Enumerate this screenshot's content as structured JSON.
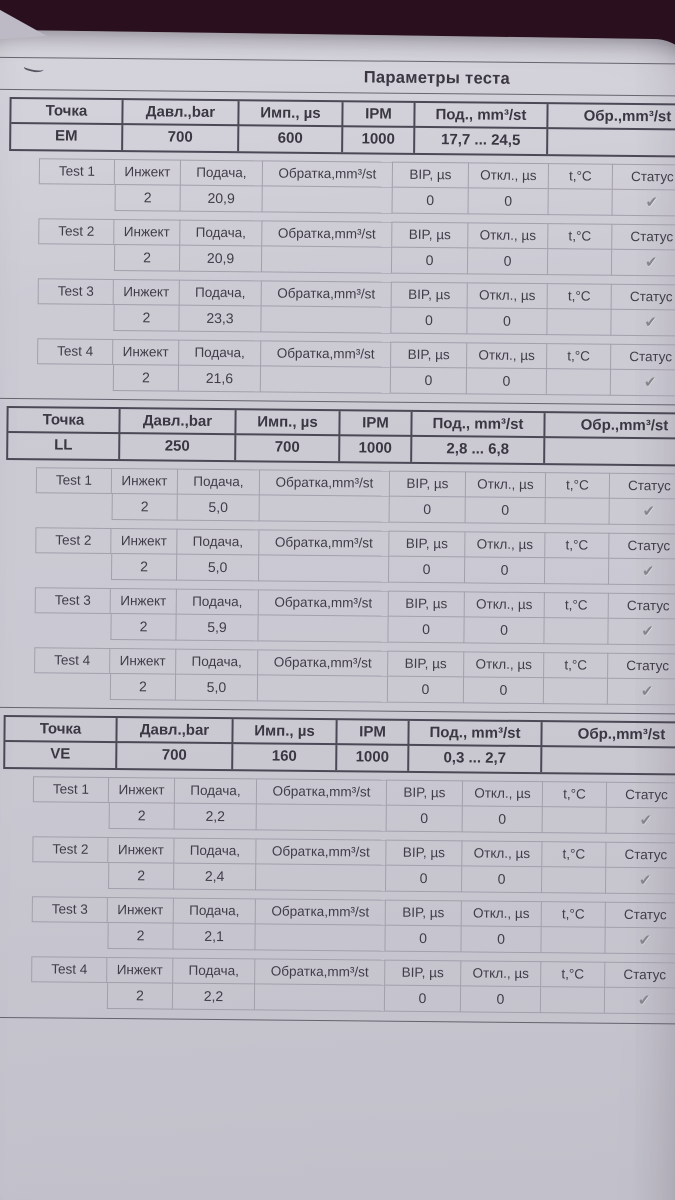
{
  "photo": {
    "colors": {
      "desk_surface": "#2a0f1e",
      "paper": "#cac8d1",
      "print_line_dark": "#4c4956",
      "print_line_light": "#a3a0ac",
      "text": "#3a3742",
      "check": "#87848e"
    }
  },
  "document": {
    "title": "Параметры теста",
    "point_columns": [
      "Точка",
      "Давл.,bar",
      "Имп., µs",
      "IPM",
      "Под., mm³/st",
      "Обр.,mm³/st"
    ],
    "test_columns": [
      "Инжект",
      "Подача,",
      "Обратка,mm³/st",
      "BIP, µs",
      "Откл., µs",
      "t,°C",
      "Статус"
    ],
    "check_glyph": "✔",
    "sections": [
      {
        "point": "EM",
        "pressure_bar": "700",
        "pulse_us": "600",
        "ipm": "1000",
        "supply_range": "17,7 ... 24,5",
        "return_value": "",
        "tests": [
          {
            "label": "Test 1",
            "injector": "2",
            "supply": "20,9",
            "return_value": "",
            "bip_us": "0",
            "deviation_us": "0",
            "temp_c": "",
            "status": "passed"
          },
          {
            "label": "Test 2",
            "injector": "2",
            "supply": "20,9",
            "return_value": "",
            "bip_us": "0",
            "deviation_us": "0",
            "temp_c": "",
            "status": "passed"
          },
          {
            "label": "Test 3",
            "injector": "2",
            "supply": "23,3",
            "return_value": "",
            "bip_us": "0",
            "deviation_us": "0",
            "temp_c": "",
            "status": "passed"
          },
          {
            "label": "Test 4",
            "injector": "2",
            "supply": "21,6",
            "return_value": "",
            "bip_us": "0",
            "deviation_us": "0",
            "temp_c": "",
            "status": "passed"
          }
        ]
      },
      {
        "point": "LL",
        "pressure_bar": "250",
        "pulse_us": "700",
        "ipm": "1000",
        "supply_range": "2,8 ... 6,8",
        "return_value": "",
        "tests": [
          {
            "label": "Test 1",
            "injector": "2",
            "supply": "5,0",
            "return_value": "",
            "bip_us": "0",
            "deviation_us": "0",
            "temp_c": "",
            "status": "passed"
          },
          {
            "label": "Test 2",
            "injector": "2",
            "supply": "5,0",
            "return_value": "",
            "bip_us": "0",
            "deviation_us": "0",
            "temp_c": "",
            "status": "passed"
          },
          {
            "label": "Test 3",
            "injector": "2",
            "supply": "5,9",
            "return_value": "",
            "bip_us": "0",
            "deviation_us": "0",
            "temp_c": "",
            "status": "passed"
          },
          {
            "label": "Test 4",
            "injector": "2",
            "supply": "5,0",
            "return_value": "",
            "bip_us": "0",
            "deviation_us": "0",
            "temp_c": "",
            "status": "passed"
          }
        ]
      },
      {
        "point": "VE",
        "pressure_bar": "700",
        "pulse_us": "160",
        "ipm": "1000",
        "supply_range": "0,3 ... 2,7",
        "return_value": "",
        "tests": [
          {
            "label": "Test 1",
            "injector": "2",
            "supply": "2,2",
            "return_value": "",
            "bip_us": "0",
            "deviation_us": "0",
            "temp_c": "",
            "status": "passed"
          },
          {
            "label": "Test 2",
            "injector": "2",
            "supply": "2,4",
            "return_value": "",
            "bip_us": "0",
            "deviation_us": "0",
            "temp_c": "",
            "status": "passed"
          },
          {
            "label": "Test 3",
            "injector": "2",
            "supply": "2,1",
            "return_value": "",
            "bip_us": "0",
            "deviation_us": "0",
            "temp_c": "",
            "status": "passed"
          },
          {
            "label": "Test 4",
            "injector": "2",
            "supply": "2,2",
            "return_value": "",
            "bip_us": "0",
            "deviation_us": "0",
            "temp_c": "",
            "status": "passed"
          }
        ]
      }
    ]
  }
}
